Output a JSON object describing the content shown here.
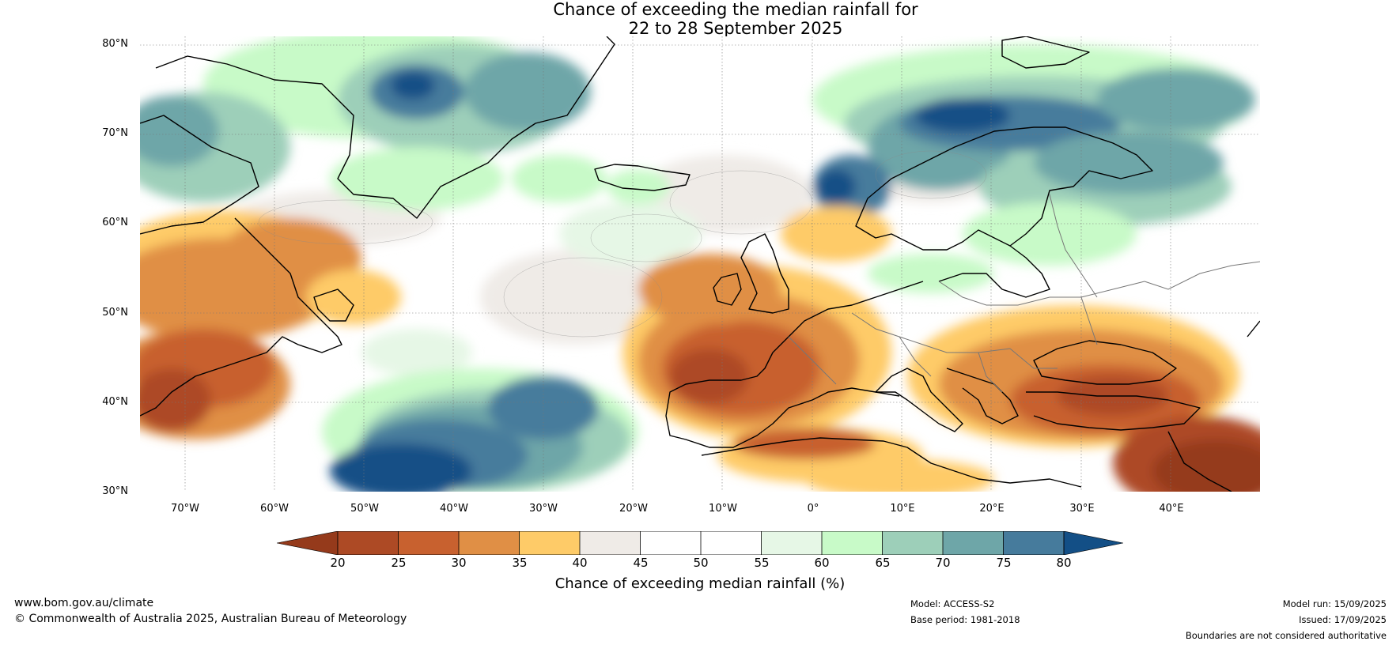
{
  "title": {
    "line1": "Chance of exceeding the median rainfall for",
    "line2": "22 to 28 September 2025"
  },
  "map": {
    "region": "North Atlantic and Europe",
    "lat_labels": [
      "80°N",
      "70°N",
      "60°N",
      "50°N",
      "40°N",
      "30°N"
    ],
    "lon_labels": [
      "70°W",
      "60°W",
      "50°W",
      "40°W",
      "30°W",
      "20°W",
      "10°W",
      "0°",
      "10°E",
      "20°E",
      "30°E",
      "40°E"
    ],
    "lat_range": [
      30,
      81
    ],
    "lon_range": [
      -75,
      50
    ]
  },
  "colorbar": {
    "title": "Chance of exceeding median rainfall (%)",
    "ticks": [
      "20",
      "25",
      "30",
      "35",
      "40",
      "45",
      "50",
      "55",
      "60",
      "65",
      "70",
      "75",
      "80"
    ],
    "colors": {
      "below_20": "#953a1b",
      "20_25": "#ad4a25",
      "25_30": "#c8612f",
      "30_35": "#e08f45",
      "35_40": "#fecb68",
      "40_45": "#efebe7",
      "45_50": "#ffffff",
      "50_55": "#ffffff",
      "55_60": "#e6f7e6",
      "60_65": "#c8fac8",
      "65_70": "#9dcfb9",
      "70_75": "#6ea6a8",
      "75_80": "#467b9c",
      "above_80": "#134f86"
    }
  },
  "footer": {
    "website": "www.bom.gov.au/climate",
    "copyright": "© Commonwealth of Australia 2025, Australian Bureau of Meteorology",
    "model": "Model: ACCESS-S2",
    "base_period": "Base period: 1981-2018",
    "model_run": "Model run: 15/09/2025",
    "issued": "Issued: 17/09/2025",
    "disclaimer": "Boundaries are not considered authoritative"
  }
}
